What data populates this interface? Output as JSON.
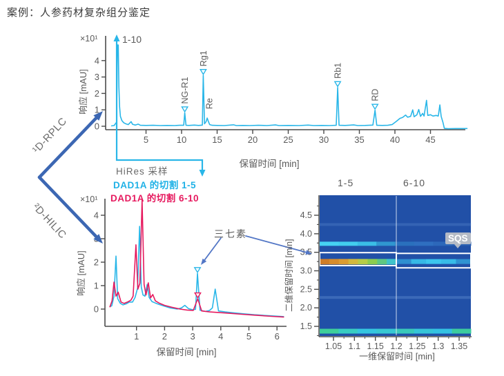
{
  "title": "案例：人参药材复杂组分鉴定",
  "flow": {
    "first_dim": "¹D-RPLC",
    "second_dim": "²D-HILIC"
  },
  "annotations": {
    "hires": "HiRes 采样",
    "legend_cut_1_5": "DAD1A 的切割 1-5",
    "legend_cut_6_10": "DAD1A 的切割 6-10",
    "sanqisu": "三七素",
    "sqs": "SQS",
    "peak_group": "1-10",
    "fraction_left": "1-5",
    "fraction_right": "6-10"
  },
  "colors": {
    "cyan": "#29b6e8",
    "magenta": "#e6195e",
    "arrow_blue": "#3c67b3",
    "annot_blue": "#5377c6",
    "gray_text": "#595959",
    "heat_bg": "#2150a7"
  },
  "chart_data": [
    {
      "id": "rplc",
      "type": "line",
      "title": "1D-RPLC chromatogram of ginseng",
      "xlabel": "保留时间 [min]",
      "ylabel": "响应 [mAU]",
      "y_exponent": "×10¹",
      "xlim": [
        0,
        50
      ],
      "ylim": [
        -0.35,
        4.95
      ],
      "grid": false,
      "xticks": [
        [
          5,
          "5"
        ],
        [
          10,
          "10"
        ],
        [
          15,
          "15"
        ],
        [
          20,
          "20"
        ],
        [
          25,
          "25"
        ],
        [
          30,
          "30"
        ],
        [
          35,
          "35"
        ],
        [
          40,
          "40"
        ],
        [
          45,
          "45"
        ]
      ],
      "yticks": [
        [
          0,
          "0"
        ],
        [
          1,
          "1"
        ],
        [
          2,
          "2"
        ],
        [
          3,
          "3"
        ],
        [
          4,
          "4"
        ]
      ],
      "series": [
        {
          "name": "DAD1A",
          "color": "#29b6e8",
          "points": [
            [
              0.1,
              0.02
            ],
            [
              0.5,
              0.04
            ],
            [
              0.85,
              0.25
            ],
            [
              0.98,
              4.95
            ],
            [
              1.1,
              4.95
            ],
            [
              1.18,
              2.4
            ],
            [
              1.28,
              1.2
            ],
            [
              1.4,
              0.6
            ],
            [
              1.6,
              0.35
            ],
            [
              1.85,
              0.22
            ],
            [
              2.1,
              0.16
            ],
            [
              2.5,
              0.1
            ],
            [
              2.9,
              0.28
            ],
            [
              3.1,
              0.12
            ],
            [
              3.5,
              0.07
            ],
            [
              3.9,
              0.13
            ],
            [
              4.2,
              0.06
            ],
            [
              5,
              0.05
            ],
            [
              6,
              0.06
            ],
            [
              7,
              0.04
            ],
            [
              8,
              0.05
            ],
            [
              9,
              0.04
            ],
            [
              9.7,
              0.06
            ],
            [
              10.3,
              0.06
            ],
            [
              10.45,
              0.82
            ],
            [
              10.62,
              0.06
            ],
            [
              11,
              0.05
            ],
            [
              11.8,
              0.07
            ],
            [
              12.4,
              0.05
            ],
            [
              12.92,
              0.07
            ],
            [
              13.05,
              3.1
            ],
            [
              13.22,
              0.15
            ],
            [
              13.45,
              0.28
            ],
            [
              13.6,
              0.5
            ],
            [
              13.78,
              0.28
            ],
            [
              13.95,
              0.1
            ],
            [
              14.3,
              0.06
            ],
            [
              15,
              0.05
            ],
            [
              16,
              0.04
            ],
            [
              17.3,
              0.09
            ],
            [
              17.7,
              0.04
            ],
            [
              18.6,
              0.05
            ],
            [
              19.6,
              0.04
            ],
            [
              20.8,
              0.06
            ],
            [
              22,
              0.04
            ],
            [
              23.2,
              0.08
            ],
            [
              23.7,
              0.04
            ],
            [
              25,
              0.05
            ],
            [
              26.5,
              0.04
            ],
            [
              27.8,
              0.07
            ],
            [
              28.6,
              0.04
            ],
            [
              29.7,
              0.05
            ],
            [
              30.8,
              0.04
            ],
            [
              31.75,
              0.06
            ],
            [
              31.95,
              2.36
            ],
            [
              32.15,
              0.06
            ],
            [
              33,
              0.05
            ],
            [
              34.2,
              0.08
            ],
            [
              34.8,
              0.04
            ],
            [
              35.8,
              0.05
            ],
            [
              36.9,
              0.07
            ],
            [
              37.2,
              0.98
            ],
            [
              37.45,
              0.06
            ],
            [
              38.2,
              0.05
            ],
            [
              39,
              0.06
            ],
            [
              39.6,
              0.1
            ],
            [
              40.2,
              0.3
            ],
            [
              40.7,
              0.48
            ],
            [
              41.1,
              0.54
            ],
            [
              41.5,
              0.68
            ],
            [
              41.8,
              0.55
            ],
            [
              42.2,
              0.6
            ],
            [
              42.5,
              1.0
            ],
            [
              42.7,
              0.58
            ],
            [
              43.1,
              0.7
            ],
            [
              43.35,
              1.02
            ],
            [
              43.6,
              0.6
            ],
            [
              43.9,
              0.78
            ],
            [
              44.1,
              0.62
            ],
            [
              44.45,
              1.58
            ],
            [
              44.62,
              0.66
            ],
            [
              45,
              0.7
            ],
            [
              45.35,
              0.62
            ],
            [
              45.8,
              0.66
            ],
            [
              46.1,
              0.62
            ],
            [
              46.32,
              1.3
            ],
            [
              46.5,
              0.6
            ],
            [
              46.75,
              0.25
            ],
            [
              46.95,
              -0.13
            ],
            [
              47.5,
              -0.15
            ],
            [
              48.6,
              -0.14
            ],
            [
              50.2,
              -0.14
            ]
          ]
        }
      ],
      "peaks": [
        {
          "label": "NG-R1",
          "x": 10.45,
          "y": 0.82,
          "marker": true
        },
        {
          "label": "Rg1",
          "x": 13.05,
          "y": 3.1,
          "marker": true
        },
        {
          "label": "Re",
          "x": 13.9,
          "y": 0.5,
          "marker": false
        },
        {
          "label": "Rb1",
          "x": 31.95,
          "y": 2.36,
          "marker": true
        },
        {
          "label": "RD",
          "x": 37.2,
          "y": 0.98,
          "marker": true
        }
      ]
    },
    {
      "id": "hilic",
      "type": "line",
      "title": "2D-HILIC overlaid cuts",
      "xlabel": "保留时间 [min]",
      "ylabel": "响应 [mAU]",
      "y_exponent": "×10¹",
      "xlim": [
        0,
        6.35
      ],
      "ylim": [
        -0.4,
        4.7
      ],
      "grid": false,
      "xticks": [
        [
          1,
          "1"
        ],
        [
          2,
          "2"
        ],
        [
          3,
          "3"
        ],
        [
          4,
          "4"
        ],
        [
          5,
          "5"
        ],
        [
          6,
          "6"
        ]
      ],
      "yticks": [
        [
          0,
          "0"
        ],
        [
          1,
          "1"
        ],
        [
          2,
          "2"
        ],
        [
          3,
          "3"
        ],
        [
          4,
          "4"
        ]
      ],
      "series": [
        {
          "name": "DAD1A 的切割 1-5",
          "color": "#29b6e8",
          "points": [
            [
              0.05,
              0.1
            ],
            [
              0.12,
              0.14
            ],
            [
              0.2,
              0.55
            ],
            [
              0.27,
              2.26
            ],
            [
              0.33,
              0.45
            ],
            [
              0.42,
              0.25
            ],
            [
              0.52,
              0.18
            ],
            [
              0.63,
              0.22
            ],
            [
              0.75,
              0.3
            ],
            [
              0.86,
              0.3
            ],
            [
              0.95,
              0.5
            ],
            [
              1.04,
              0.9
            ],
            [
              1.11,
              3.53
            ],
            [
              1.17,
              0.95
            ],
            [
              1.23,
              0.6
            ],
            [
              1.3,
              0.55
            ],
            [
              1.38,
              1.05
            ],
            [
              1.45,
              0.5
            ],
            [
              1.55,
              0.32
            ],
            [
              1.67,
              0.26
            ],
            [
              1.8,
              0.2
            ],
            [
              2.0,
              0.12
            ],
            [
              2.2,
              0.05
            ],
            [
              2.45,
              0.0
            ],
            [
              2.6,
              0.05
            ],
            [
              2.72,
              0.16
            ],
            [
              2.85,
              0.02
            ],
            [
              3.0,
              -0.03
            ],
            [
              3.1,
              -0.01
            ],
            [
              3.17,
              1.52
            ],
            [
              3.26,
              -0.05
            ],
            [
              3.45,
              -0.1
            ],
            [
              3.6,
              -0.06
            ],
            [
              3.7,
              0.05
            ],
            [
              3.8,
              0.85
            ],
            [
              3.92,
              -0.08
            ],
            [
              4.15,
              -0.12
            ],
            [
              4.45,
              -0.16
            ],
            [
              4.8,
              -0.2
            ],
            [
              5.2,
              -0.24
            ],
            [
              5.7,
              -0.28
            ],
            [
              6.25,
              -0.32
            ]
          ]
        },
        {
          "name": "DAD1A 的切割 6-10",
          "color": "#e6195e",
          "points": [
            [
              0.05,
              0.08
            ],
            [
              0.13,
              0.35
            ],
            [
              0.2,
              1.15
            ],
            [
              0.27,
              0.55
            ],
            [
              0.35,
              0.72
            ],
            [
              0.45,
              0.3
            ],
            [
              0.56,
              0.24
            ],
            [
              0.68,
              0.3
            ],
            [
              0.8,
              0.38
            ],
            [
              0.88,
              0.55
            ],
            [
              0.98,
              2.74
            ],
            [
              1.05,
              0.85
            ],
            [
              1.12,
              1.1
            ],
            [
              1.2,
              4.65
            ],
            [
              1.27,
              1.05
            ],
            [
              1.34,
              0.6
            ],
            [
              1.42,
              1.12
            ],
            [
              1.5,
              0.48
            ],
            [
              1.58,
              0.62
            ],
            [
              1.67,
              0.35
            ],
            [
              1.8,
              0.26
            ],
            [
              2.0,
              0.16
            ],
            [
              2.25,
              0.08
            ],
            [
              2.55,
              0.0
            ],
            [
              2.8,
              -0.04
            ],
            [
              3.02,
              -0.06
            ],
            [
              3.18,
              0.44
            ],
            [
              3.32,
              -0.08
            ],
            [
              3.6,
              -0.12
            ],
            [
              3.95,
              -0.15
            ],
            [
              4.3,
              -0.18
            ],
            [
              4.75,
              -0.22
            ],
            [
              5.2,
              -0.26
            ],
            [
              5.8,
              -0.31
            ],
            [
              6.25,
              -0.34
            ]
          ]
        }
      ],
      "peaks": [
        {
          "label": "",
          "x": 3.17,
          "y": 1.52,
          "marker": true,
          "series": 0
        },
        {
          "label": "",
          "x": 3.18,
          "y": 0.44,
          "marker": true,
          "series": 1
        }
      ]
    },
    {
      "id": "heatmap",
      "type": "heatmap",
      "title": "2D retention plot",
      "xlabel": "一维保留时间 [min]",
      "ylabel": "二维保留时间 [min]",
      "xlim": [
        1.017,
        1.378
      ],
      "ylim": [
        1.24,
        5.04
      ],
      "xticks": [
        [
          1.05,
          "1.05"
        ],
        [
          1.1,
          "1.1"
        ],
        [
          1.15,
          "1.15"
        ],
        [
          1.2,
          "1.2"
        ],
        [
          1.25,
          "1.25"
        ],
        [
          1.3,
          "1.3"
        ],
        [
          1.35,
          "1.35"
        ]
      ],
      "yticks": [
        [
          1.5,
          "1.5"
        ],
        [
          2,
          "2.0"
        ],
        [
          2.5,
          "2.5"
        ],
        [
          3,
          "3.0"
        ],
        [
          3.5,
          "3.5"
        ],
        [
          4,
          "4.0"
        ],
        [
          4.5,
          "4.5"
        ]
      ],
      "column_labels": [
        "1-5",
        "6-10"
      ],
      "divider_x": 1.2,
      "background": "#2150a7",
      "bands": [
        {
          "y": 4.25,
          "thickness_px": 4,
          "colors": [
            "rgba(110,155,220,0.25)"
          ]
        },
        {
          "y": 3.73,
          "thickness_px": 6,
          "colors": [
            "#46d2f2",
            "#42cdee",
            "#3abde6",
            "#3096d0",
            "#2a70bd",
            "#2f6fc0",
            "#2d68ba",
            "#2b60b2"
          ]
        },
        {
          "y": 2.28,
          "thickness_px": 4,
          "colors": [
            "rgba(120,165,225,0.3)"
          ]
        },
        {
          "y": 1.37,
          "thickness_px": 7,
          "colors": [
            "#3ecf9a",
            "#38cdc2",
            "#35c6e0",
            "#37c8d2",
            "#39c9ba",
            "#36c5d8",
            "#34c2e2",
            "#3ccc9e"
          ]
        }
      ],
      "highlight_boxes": [
        {
          "x_from": 1.017,
          "x_to": 1.2,
          "y_from": 3.14,
          "y_to": 3.49,
          "stripe": {
            "y": 3.245,
            "thickness_px": 8,
            "colors": [
              "#cf7d27",
              "#d68c2c",
              "#da9c33",
              "#d2b83e",
              "#b6cc48",
              "#8bcc50",
              "#5fc882",
              "#40c4ca"
            ]
          }
        },
        {
          "x_from": 1.2,
          "x_to": 1.378,
          "y_from": 3.08,
          "y_to": 3.47,
          "stripe": {
            "y": 3.25,
            "thickness_px": 7,
            "colors": [
              "#2f8fd0",
              "#36b8e6",
              "#3cc6ee",
              "#38bce8",
              "#2f93d2"
            ]
          }
        }
      ],
      "spot_label": "SQS"
    }
  ]
}
